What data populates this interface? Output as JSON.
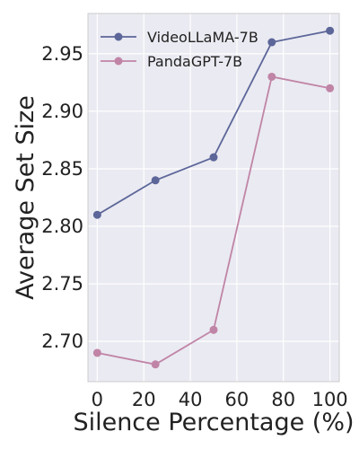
{
  "chart_data": {
    "type": "line",
    "title": "",
    "xlabel": "Silence Percentage (%)",
    "ylabel": "Average Set Size",
    "x": [
      0,
      25,
      50,
      75,
      100
    ],
    "series": [
      {
        "name": "VideoLLaMA-7B",
        "values": [
          2.81,
          2.84,
          2.86,
          2.96,
          2.97
        ],
        "color": "#5c6699"
      },
      {
        "name": "PandaGPT-7B",
        "values": [
          2.69,
          2.68,
          2.71,
          2.93,
          2.92
        ],
        "color": "#c084a6"
      }
    ],
    "xlim": [
      -4,
      104
    ],
    "ylim": [
      2.665,
      2.985
    ],
    "xticks": [
      0,
      20,
      40,
      60,
      80,
      100
    ],
    "xtick_labels": [
      "0",
      "20",
      "40",
      "60",
      "80",
      "100"
    ],
    "yticks": [
      2.7,
      2.75,
      2.8,
      2.85,
      2.9,
      2.95
    ],
    "ytick_labels": [
      "2.70",
      "2.75",
      "2.80",
      "2.85",
      "2.90",
      "2.95"
    ],
    "grid": true,
    "legend_position": "top-left",
    "background_color": "#eaeaf2",
    "grid_color": "#ffffff"
  }
}
